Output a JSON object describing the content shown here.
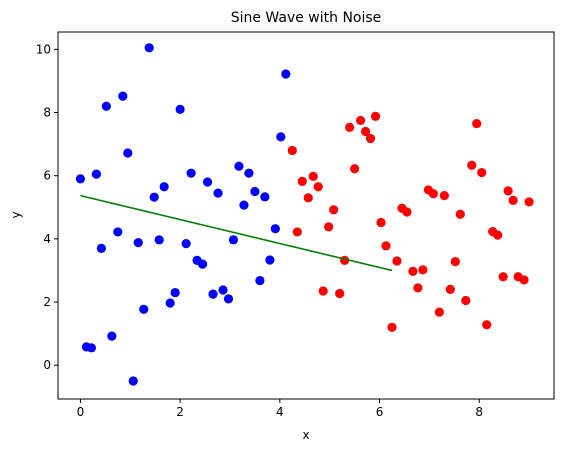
{
  "chart_data": {
    "type": "scatter",
    "title": "Sine Wave with Noise",
    "xlabel": "x",
    "ylabel": "y",
    "xlim": [
      -0.45,
      9.5
    ],
    "ylim": [
      -1.07,
      10.55
    ],
    "xticks": [
      0,
      2,
      4,
      6,
      8
    ],
    "yticks": [
      0,
      2,
      4,
      6,
      8,
      10
    ],
    "grid": false,
    "legend": "none",
    "series": [
      {
        "color": "#0000ff",
        "marker": "circle",
        "x": [
          0.0,
          0.12,
          0.22,
          0.32,
          0.42,
          0.52,
          0.63,
          0.75,
          0.85,
          0.95,
          1.06,
          1.16,
          1.27,
          1.38,
          1.48,
          1.58,
          1.68,
          1.8,
          1.9,
          2.0,
          2.12,
          2.22,
          2.34,
          2.45,
          2.55,
          2.66,
          2.76,
          2.86,
          2.97,
          3.07,
          3.18,
          3.28,
          3.38,
          3.5,
          3.6,
          3.7,
          3.8,
          3.91,
          4.02,
          4.12
        ],
        "y": [
          5.9,
          0.58,
          0.55,
          6.05,
          3.7,
          8.2,
          0.92,
          4.22,
          8.52,
          6.72,
          -0.5,
          3.88,
          1.77,
          10.05,
          5.32,
          3.97,
          5.65,
          1.97,
          2.3,
          8.1,
          3.85,
          6.08,
          3.32,
          3.2,
          5.8,
          2.25,
          5.45,
          2.38,
          2.1,
          3.97,
          6.3,
          5.07,
          6.08,
          5.5,
          2.68,
          5.33,
          3.33,
          4.32,
          7.23,
          9.22
        ]
      },
      {
        "color": "#ff0000",
        "marker": "circle",
        "x": [
          4.25,
          4.35,
          4.45,
          4.57,
          4.67,
          4.77,
          4.87,
          4.98,
          5.08,
          5.2,
          5.3,
          5.4,
          5.5,
          5.62,
          5.72,
          5.82,
          5.92,
          6.03,
          6.13,
          6.25,
          6.35,
          6.45,
          6.55,
          6.67,
          6.77,
          6.87,
          6.98,
          7.08,
          7.2,
          7.3,
          7.42,
          7.52,
          7.62,
          7.73,
          7.85,
          7.95,
          8.05,
          8.15,
          8.27,
          8.37,
          8.48,
          8.58,
          8.68,
          8.78,
          8.9,
          9.0
        ],
        "y": [
          6.8,
          4.22,
          5.82,
          5.3,
          5.98,
          5.65,
          2.35,
          4.38,
          4.92,
          2.27,
          3.32,
          7.53,
          6.22,
          7.75,
          7.4,
          7.18,
          7.88,
          4.52,
          3.78,
          1.2,
          3.3,
          4.97,
          4.85,
          2.97,
          2.45,
          3.02,
          5.55,
          5.43,
          1.68,
          5.37,
          2.4,
          3.28,
          4.78,
          2.05,
          6.33,
          7.65,
          6.1,
          1.28,
          4.23,
          4.12,
          2.8,
          5.52,
          5.22,
          2.8,
          2.7,
          5.17
        ]
      }
    ],
    "line": {
      "color": "#008000",
      "x": [
        0.0,
        6.25
      ],
      "y": [
        5.37,
        3.0
      ]
    }
  }
}
